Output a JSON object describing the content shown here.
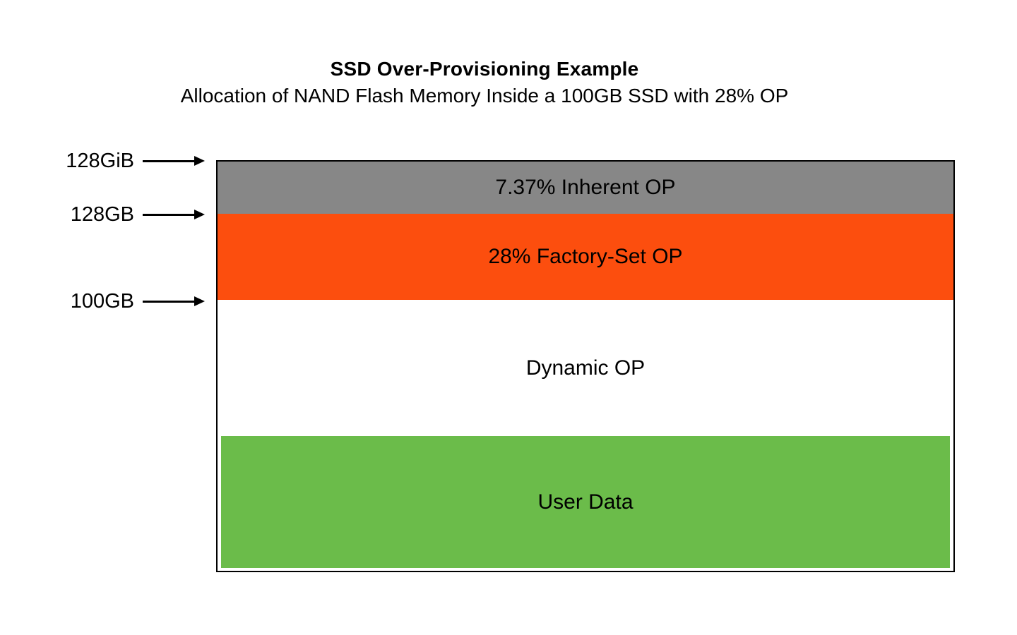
{
  "page": {
    "title": "SSD Over-Provisioning Example",
    "subtitle": "Allocation of NAND Flash Memory Inside a 100GB SSD with 28% OP"
  },
  "markers": [
    {
      "label": "128GiB"
    },
    {
      "label": "128GB"
    },
    {
      "label": "100GB"
    }
  ],
  "diagram": {
    "border_color": "#000000",
    "arrow_color": "#000000",
    "segments": [
      {
        "name": "inherent-op",
        "label": "7.37% Inherent OP",
        "color": "#878787",
        "text_color": "#000000"
      },
      {
        "name": "factory-set-op",
        "label": "28% Factory-Set OP",
        "color": "#fc4e0e",
        "text_color": "#000000"
      },
      {
        "name": "dynamic-op",
        "label": "Dynamic OP",
        "color": "#ffffff",
        "text_color": "#000000"
      },
      {
        "name": "user-data",
        "label": "User Data",
        "color": "#6bbc4a",
        "text_color": "#000000"
      }
    ]
  }
}
